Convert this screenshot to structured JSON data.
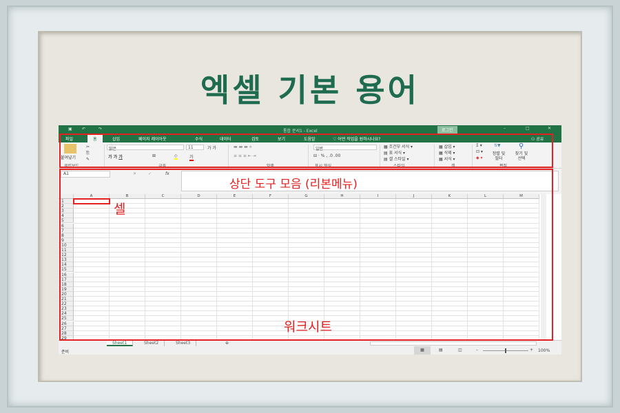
{
  "title": "엑셀 기본 용어",
  "excel": {
    "window_title": "통합 문서1 - Excel",
    "login": "로그인",
    "tabs": [
      "파일",
      "홈",
      "삽입",
      "페이지 레이아웃",
      "수식",
      "데이터",
      "검토",
      "보기",
      "도움말"
    ],
    "tell_me": "어떤 작업을 원하시나요?",
    "share": "공유",
    "ribbon": {
      "paste": "붙여넣기",
      "font_name": "맑은",
      "font_size": "11",
      "number_format": "일반",
      "conditional": "조건부 서식",
      "table_format": "표 서식",
      "cell_style": "셀 스타일",
      "insert": "삽입",
      "delete": "삭제",
      "format": "서식",
      "sort": "정렬 및 필터",
      "find": "찾기 및 선택",
      "groups": [
        "클립보드",
        "글꼴",
        "맞춤",
        "표시 형식",
        "스타일",
        "셀",
        "편집"
      ]
    },
    "name_box": "A1",
    "fx": "fx",
    "columns": [
      "A",
      "B",
      "C",
      "D",
      "E",
      "F",
      "G",
      "H",
      "I",
      "J",
      "K",
      "L",
      "M"
    ],
    "rows": 29,
    "sheets": [
      "Sheet1",
      "Sheet2",
      "Sheet3"
    ],
    "status": "준비",
    "zoom": "100%"
  },
  "annotations": {
    "ribbon": "상단 도구 모음 (리본메뉴)",
    "cell": "셀",
    "worksheet": "워크시트",
    "color": "#e62020"
  }
}
